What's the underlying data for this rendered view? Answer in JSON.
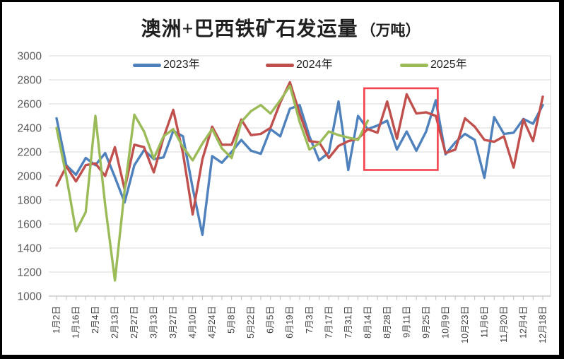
{
  "title": {
    "main": "澳洲+巴西铁矿石发运量",
    "unit": "（万吨）"
  },
  "legend": [
    {
      "label": "2023年",
      "color": "#4F81BD"
    },
    {
      "label": "2024年",
      "color": "#C0504D"
    },
    {
      "label": "2025年",
      "color": "#9BBB59"
    }
  ],
  "colors": {
    "series_2023": "#4F81BD",
    "series_2024": "#C0504D",
    "series_2025": "#9BBB59",
    "annotation_box": "#F4424E",
    "gridline": "#D9D9D9",
    "axis_line": "#BFBFBF",
    "tick_label": "#595959"
  },
  "chart_data": {
    "type": "line",
    "title": "澳洲+巴西铁矿石发运量（万吨）",
    "xlabel": "",
    "ylabel": "",
    "ylim": [
      1000,
      3000
    ],
    "y_ticks": [
      1000,
      1200,
      1400,
      1600,
      1800,
      2000,
      2200,
      2400,
      2600,
      2800,
      3000
    ],
    "grid": "horizontal",
    "legend_position": "top",
    "x_tick_labels": [
      "1月2日",
      "1月16日",
      "2月4日",
      "2月13日",
      "2月27日",
      "3月13日",
      "3月27日",
      "4月10日",
      "4月24日",
      "5月8日",
      "5月22日",
      "6月5日",
      "6月19日",
      "7月3日",
      "7月17日",
      "7月31日",
      "8月14日",
      "8月28日",
      "9月11日",
      "9月25日",
      "10月9日",
      "10月23日",
      "11月6日",
      "11月20日",
      "12月4日",
      "12月18日"
    ],
    "points_per_label": 2,
    "series": [
      {
        "name": "2023年",
        "color": "#4F81BD",
        "values": [
          2480,
          2090,
          2010,
          2150,
          2090,
          2190,
          1990,
          1780,
          2090,
          2215,
          2140,
          2155,
          2375,
          2330,
          1900,
          1510,
          2165,
          2110,
          2200,
          2300,
          2210,
          2185,
          2390,
          2330,
          2560,
          2590,
          2330,
          2130,
          2195,
          2620,
          2050,
          2500,
          2390,
          2420,
          2460,
          2220,
          2370,
          2210,
          2370,
          2630,
          2180,
          2280,
          2350,
          2300,
          1985,
          2490,
          2350,
          2360,
          2475,
          2435,
          2590
        ]
      },
      {
        "name": "2024年",
        "color": "#C0504D",
        "values": [
          1920,
          2080,
          1955,
          2090,
          2105,
          2000,
          2240,
          1890,
          2260,
          2240,
          2030,
          2320,
          2550,
          2190,
          1680,
          2140,
          2410,
          2260,
          2260,
          2470,
          2340,
          2350,
          2400,
          2610,
          2780,
          2520,
          2290,
          2280,
          2150,
          2250,
          2290,
          2310,
          2390,
          2360,
          2620,
          2310,
          2680,
          2520,
          2530,
          2500,
          2190,
          2220,
          2480,
          2410,
          2300,
          2285,
          2330,
          2070,
          2470,
          2290,
          2660
        ]
      },
      {
        "name": "2025年",
        "color": "#9BBB59",
        "values": [
          2400,
          2000,
          1540,
          1700,
          2500,
          1760,
          1130,
          1880,
          2510,
          2370,
          2145,
          2330,
          2390,
          2240,
          2130,
          2270,
          2390,
          2230,
          2150,
          2450,
          2540,
          2590,
          2520,
          2630,
          2750,
          2450,
          2220,
          2270,
          2370,
          2340,
          2320,
          2300,
          2460
        ]
      }
    ],
    "annotation": {
      "shape": "rect",
      "color": "#F4424E",
      "x_from_label": "8月14日",
      "x_to_label": "10月9日",
      "y_from": 2050,
      "y_to": 2730
    }
  }
}
